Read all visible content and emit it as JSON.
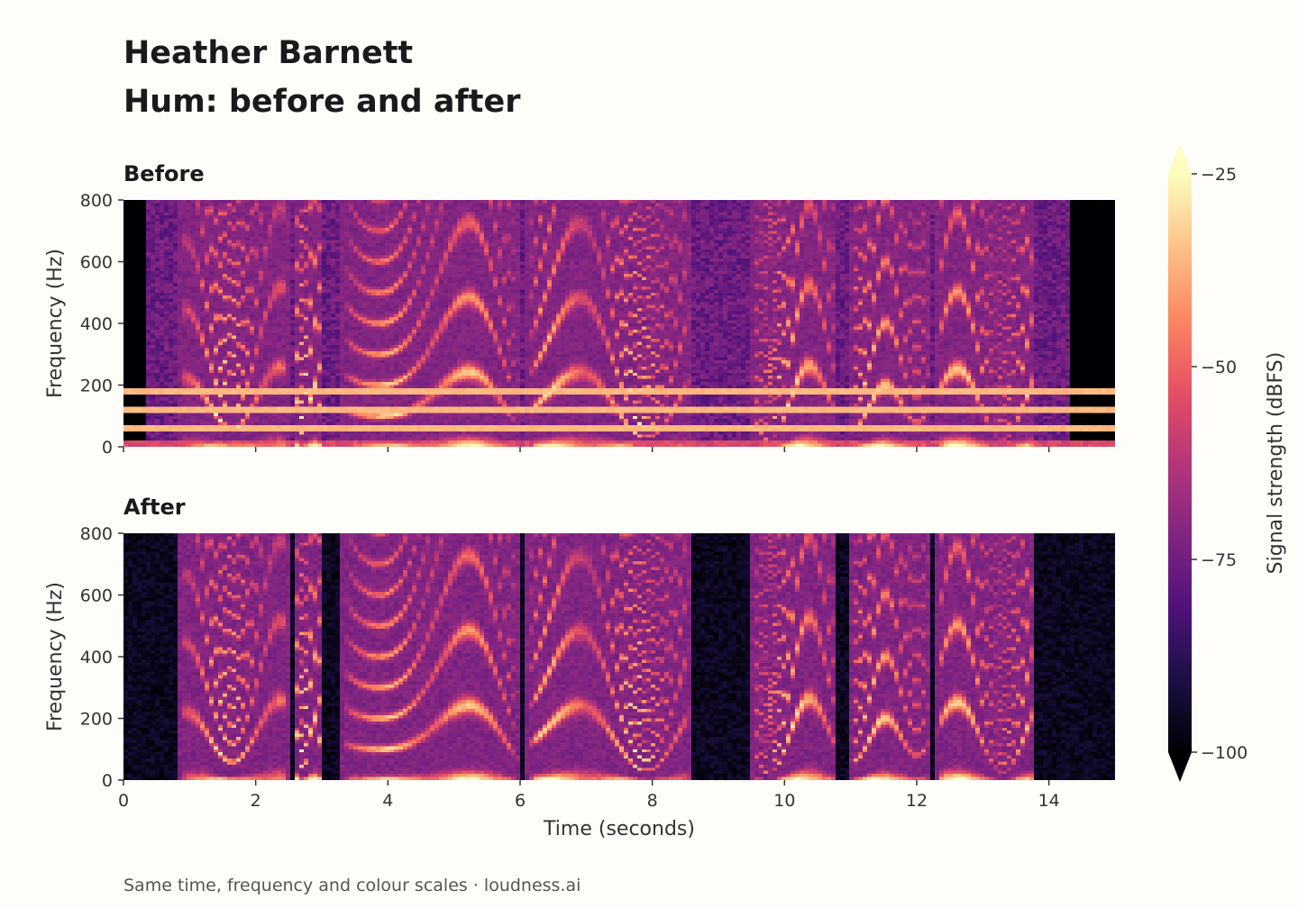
{
  "title": "Heather Barnett",
  "subtitle": "Hum: before and after",
  "footer": "Same time, frequency and colour scales · loudness.ai",
  "chart_data": [
    {
      "type": "heatmap",
      "title": "Before",
      "xlabel": "Time (seconds)",
      "ylabel": "Frequency (Hz)",
      "xlim": [
        0,
        15
      ],
      "ylim": [
        0,
        800
      ],
      "xticks": [
        0,
        2,
        4,
        6,
        8,
        10,
        12,
        14
      ],
      "yticks": [
        0,
        200,
        400,
        600,
        800
      ],
      "hum_lines_hz": [
        60,
        120,
        180
      ],
      "speech_segments_s": [
        [
          0.85,
          2.5
        ],
        [
          2.6,
          3.0
        ],
        [
          3.3,
          6.0
        ],
        [
          6.1,
          8.6
        ],
        [
          9.5,
          10.8
        ],
        [
          11.0,
          12.2
        ],
        [
          12.3,
          13.8
        ]
      ]
    },
    {
      "type": "heatmap",
      "title": "After",
      "xlabel": "Time (seconds)",
      "ylabel": "Frequency (Hz)",
      "xlim": [
        0,
        15
      ],
      "ylim": [
        0,
        800
      ],
      "xticks": [
        0,
        2,
        4,
        6,
        8,
        10,
        12,
        14
      ],
      "yticks": [
        0,
        200,
        400,
        600,
        800
      ],
      "hum_lines_hz": [],
      "speech_segments_s": [
        [
          0.85,
          2.5
        ],
        [
          2.6,
          3.0
        ],
        [
          3.3,
          6.0
        ],
        [
          6.1,
          8.6
        ],
        [
          9.5,
          10.8
        ],
        [
          11.0,
          12.2
        ],
        [
          12.3,
          13.8
        ]
      ]
    }
  ],
  "colorbar": {
    "label": "Signal strength (dBFS)",
    "min": -100,
    "max": -25,
    "ticks": [
      -25,
      -50,
      -75,
      -100
    ],
    "tick_labels": [
      "−25",
      "−50",
      "−75",
      "−100"
    ],
    "colormap": "magma",
    "colors": [
      "#000004",
      "#1c1044",
      "#4f127b",
      "#812581",
      "#b5367a",
      "#e55064",
      "#fb8761",
      "#fec287",
      "#fcfdbf"
    ]
  }
}
